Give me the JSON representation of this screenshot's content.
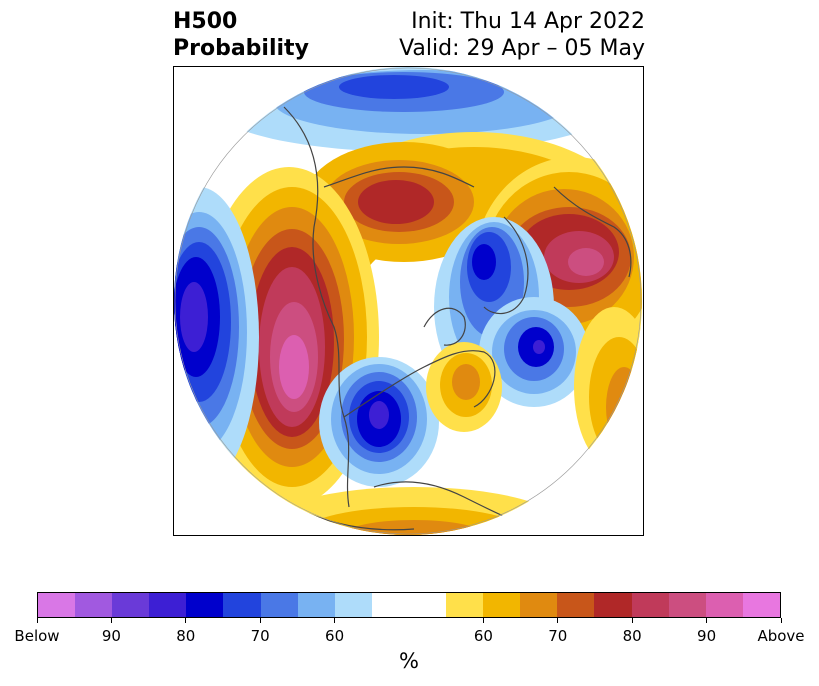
{
  "title": {
    "left_line1": "H500",
    "left_line2": "Probability",
    "right_line1": "Init: Thu 14 Apr 2022",
    "right_line2": "Valid: 29 Apr – 05 May"
  },
  "colorbar": {
    "colors": [
      "#d977e6",
      "#a159e0",
      "#6a3ad8",
      "#3d1fd4",
      "#0000cc",
      "#2244dd",
      "#4a78e6",
      "#78b2f2",
      "#aedcfa",
      "#ffffff",
      "#ffffff",
      "#ffe04a",
      "#f2b600",
      "#e08a10",
      "#c8561a",
      "#b02828",
      "#c03a5a",
      "#cc4e80",
      "#dc5fb0",
      "#e877e0"
    ],
    "tick_labels": [
      "Below",
      "90",
      "80",
      "70",
      "60",
      "60",
      "70",
      "80",
      "90",
      "Above"
    ],
    "units": "%"
  },
  "colors": {
    "below_strong": "#0000cc",
    "above_strong": "#b02828"
  }
}
